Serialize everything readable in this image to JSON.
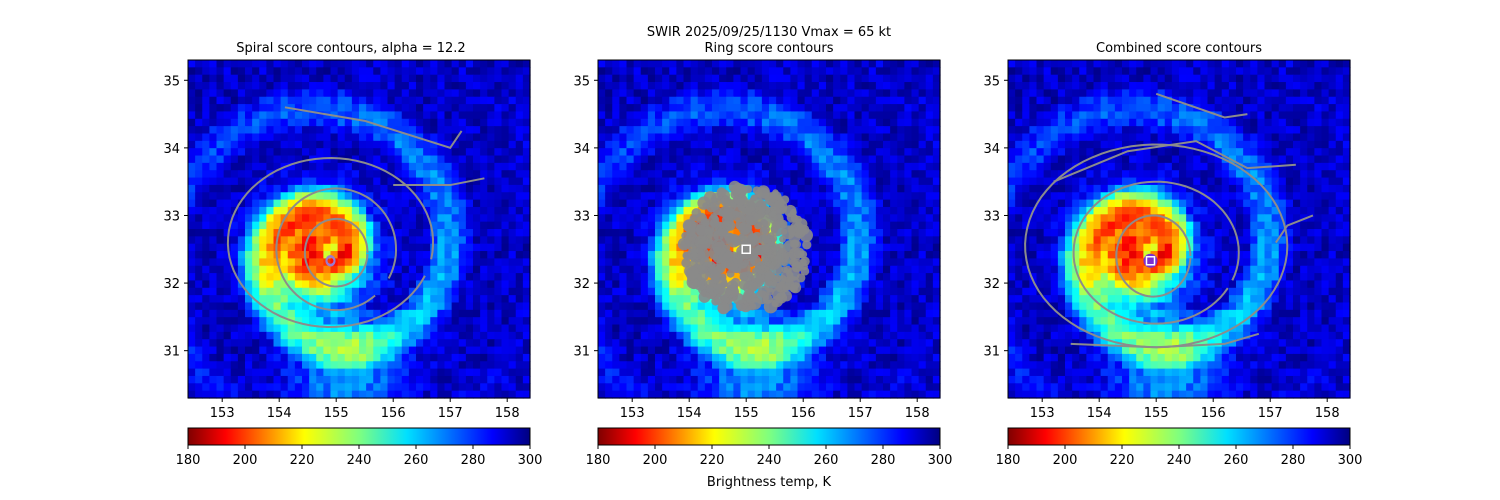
{
  "figure": {
    "suptitle_line1": "SWIR  2025/09/25/1130    Vmax = 65 kt",
    "colorbar_label": "Brightness temp, K"
  },
  "chart_data": [
    {
      "type": "heatmap",
      "title": "Spiral score contours, alpha = 12.2",
      "xlim": [
        152.4,
        158.4
      ],
      "ylim": [
        30.3,
        35.3
      ],
      "x_ticks": [
        153,
        154,
        155,
        156,
        157,
        158
      ],
      "y_ticks": [
        31,
        32,
        33,
        34,
        35
      ],
      "colormap": "jet_r",
      "clim": [
        180,
        300
      ],
      "colorbar_ticks": [
        180,
        200,
        220,
        240,
        260,
        280,
        300
      ],
      "center_marker": {
        "shape": "circle",
        "lon": 154.9,
        "lat": 32.33
      },
      "contour_color": "#8c8c8c"
    },
    {
      "type": "heatmap",
      "title": "Ring score contours",
      "xlim": [
        152.4,
        158.4
      ],
      "ylim": [
        30.3,
        35.3
      ],
      "x_ticks": [
        153,
        154,
        155,
        156,
        157,
        158
      ],
      "y_ticks": [
        31,
        32,
        33,
        34,
        35
      ],
      "colormap": "jet_r",
      "clim": [
        180,
        300
      ],
      "colorbar_ticks": [
        180,
        200,
        220,
        240,
        260,
        280,
        300
      ],
      "center_marker": {
        "shape": "square",
        "lon": 155.0,
        "lat": 32.5
      },
      "contour_color": "#8c8c8c"
    },
    {
      "type": "heatmap",
      "title": "Combined score contours",
      "xlim": [
        152.4,
        158.4
      ],
      "ylim": [
        30.3,
        35.3
      ],
      "x_ticks": [
        153,
        154,
        155,
        156,
        157,
        158
      ],
      "y_ticks": [
        31,
        32,
        33,
        34,
        35
      ],
      "colormap": "jet_r",
      "clim": [
        180,
        300
      ],
      "colorbar_ticks": [
        180,
        200,
        220,
        240,
        260,
        280,
        300
      ],
      "center_marker": {
        "shape": "square",
        "lon": 154.9,
        "lat": 32.33
      },
      "contour_color": "#8c8c8c"
    }
  ]
}
